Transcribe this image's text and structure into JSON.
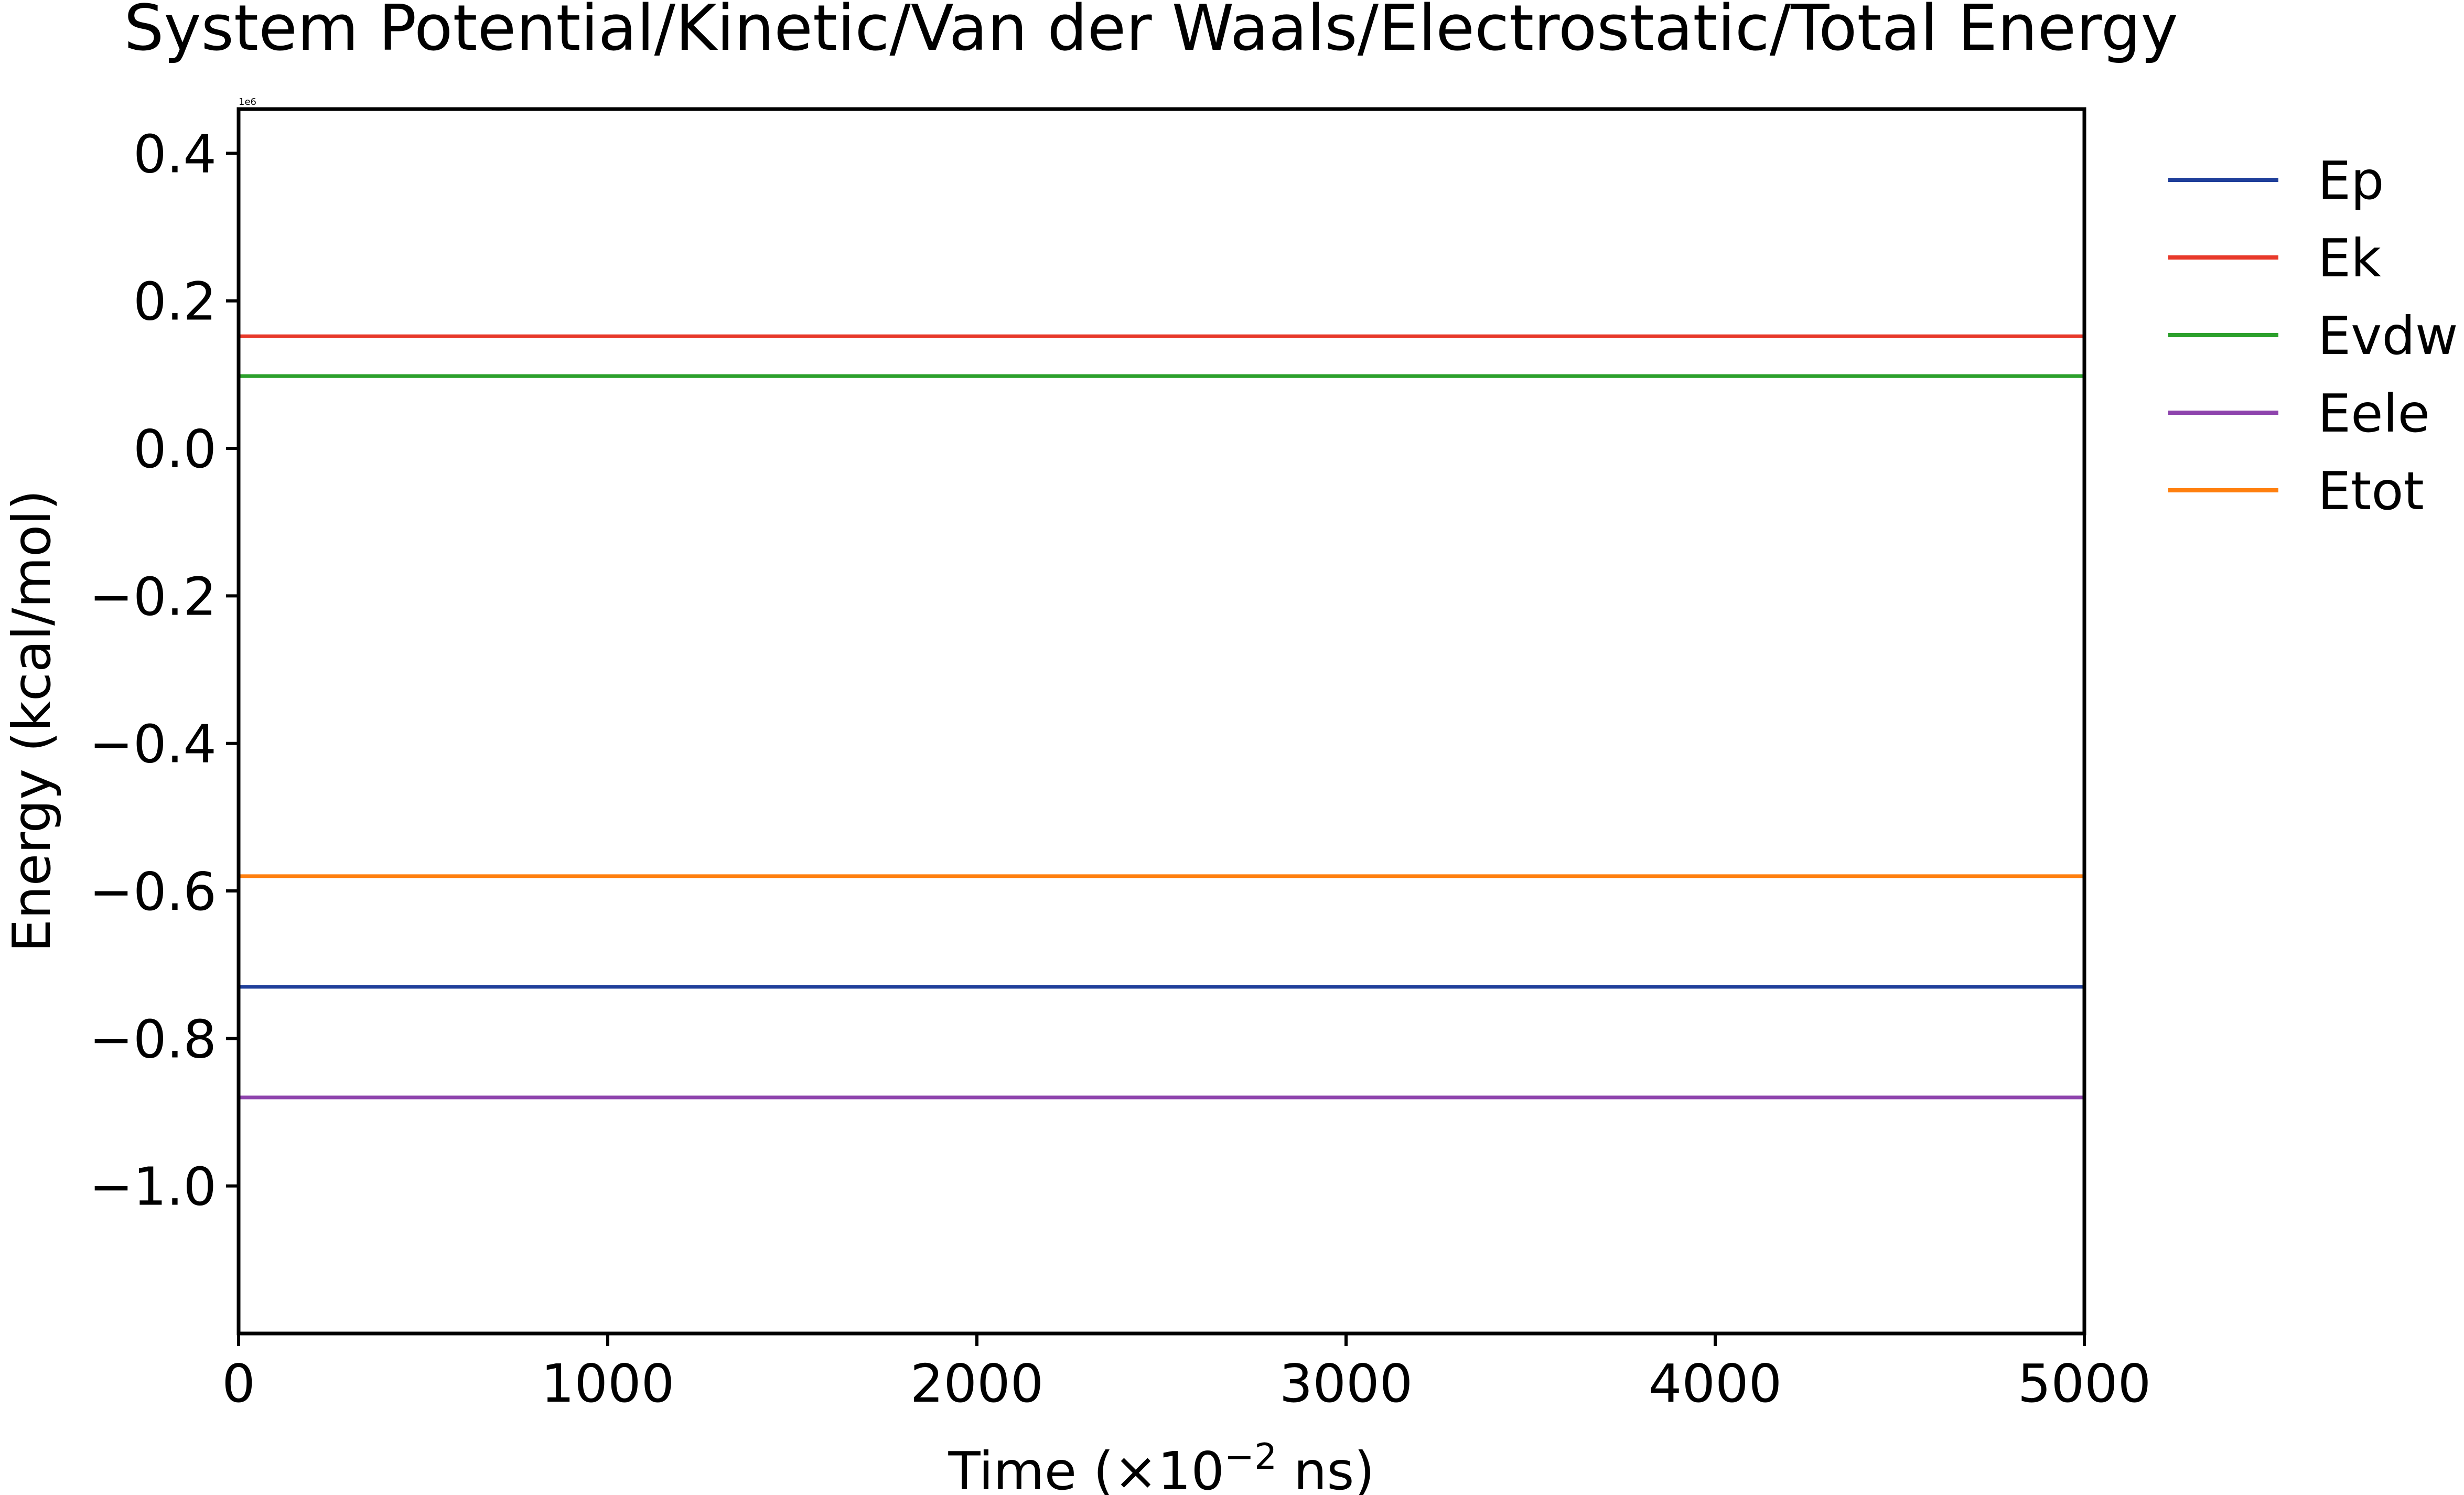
{
  "chart_data": {
    "type": "line",
    "title": "System Potential/Kinetic/Van der Waals/Electrostatic/Total Energy",
    "xlabel_prefix": "Time (×10",
    "xlabel_exponent": "−2",
    "xlabel_suffix": " ns)",
    "ylabel": "Energy (kcal/mol)",
    "y_offset_label": "1e6",
    "xlim": [
      0,
      5000
    ],
    "ylim": [
      -1.2,
      0.46
    ],
    "x_ticks": [
      0,
      1000,
      2000,
      3000,
      4000,
      5000
    ],
    "x_tick_labels": [
      "0",
      "1000",
      "2000",
      "3000",
      "4000",
      "5000"
    ],
    "y_ticks": [
      0.4,
      0.2,
      0.0,
      -0.2,
      -0.4,
      -0.6,
      -0.8,
      -1.0
    ],
    "y_tick_labels": [
      "0.4",
      "0.2",
      "0.0",
      "−0.2",
      "−0.4",
      "−0.6",
      "−0.8",
      "−1.0"
    ],
    "legend_position": "outside-right-top",
    "grid": false,
    "x": [
      0,
      5000
    ],
    "series": [
      {
        "name": "Ep",
        "color": "#1f3f9a",
        "values": [
          -0.73,
          -0.73
        ]
      },
      {
        "name": "Ek",
        "color": "#e8392a",
        "values": [
          0.152,
          0.152
        ]
      },
      {
        "name": "Evdw",
        "color": "#2ca02c",
        "values": [
          0.098,
          0.098
        ]
      },
      {
        "name": "Eele",
        "color": "#8e44ad",
        "values": [
          -0.88,
          -0.88
        ]
      },
      {
        "name": "Etot",
        "color": "#ff7f0e",
        "values": [
          -0.58,
          -0.58
        ]
      }
    ]
  }
}
